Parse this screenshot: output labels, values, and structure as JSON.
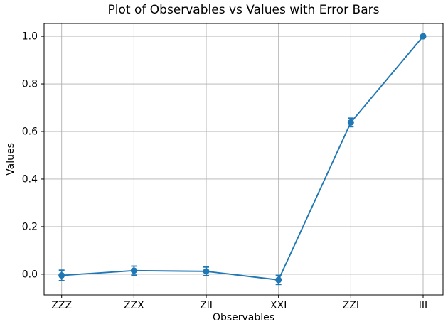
{
  "chart_data": {
    "type": "line",
    "title": "Plot of Observables vs Values with Error Bars",
    "xlabel": "Observables",
    "ylabel": "Values",
    "categories": [
      "ZZZ",
      "ZZX",
      "ZII",
      "XXI",
      "ZZI",
      "III"
    ],
    "values": [
      -0.005,
      0.015,
      0.012,
      -0.024,
      0.638,
      1.0
    ],
    "errors": [
      0.022,
      0.019,
      0.018,
      0.019,
      0.018,
      0.003
    ],
    "yticks": [
      0.0,
      0.2,
      0.4,
      0.6,
      0.8,
      1.0
    ],
    "ytick_labels": [
      "0.0",
      "0.2",
      "0.4",
      "0.6",
      "0.8",
      "1.0"
    ],
    "ylim": [
      -0.087,
      1.054
    ],
    "grid": true,
    "legend": "none",
    "marker": "o",
    "line_color": "#1f77b4",
    "grid_color": "#b0b0b0",
    "spine_color": "#000000",
    "text_color": "#000000",
    "background_color": "#ffffff"
  }
}
